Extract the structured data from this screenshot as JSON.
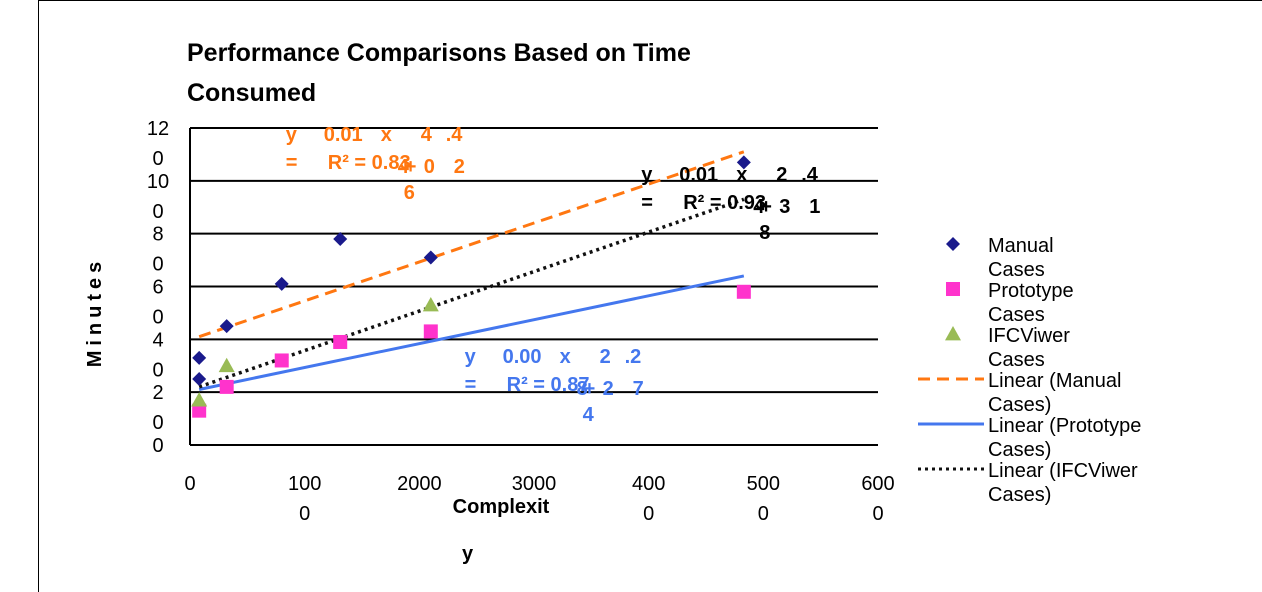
{
  "chart_data": {
    "type": "scatter",
    "title_lines": [
      "Performance Comparisons Based on Time",
      "Consumed"
    ],
    "xlabel_lines": [
      "Complexit",
      "y"
    ],
    "ylabel": "Minutes",
    "xlim": [
      0,
      6000
    ],
    "ylim": [
      0,
      120
    ],
    "x_ticks": [
      {
        "value": 0,
        "lines": [
          "0"
        ]
      },
      {
        "value": 1000,
        "lines": [
          "100",
          "0"
        ]
      },
      {
        "value": 2000,
        "lines": [
          "2000"
        ]
      },
      {
        "value": 3000,
        "lines": [
          "3000"
        ]
      },
      {
        "value": 4000,
        "lines": [
          "400",
          "0"
        ]
      },
      {
        "value": 5000,
        "lines": [
          "500",
          "0"
        ]
      },
      {
        "value": 6000,
        "lines": [
          "600",
          "0"
        ]
      }
    ],
    "y_ticks": [
      {
        "value": 0,
        "lines": [
          "0"
        ]
      },
      {
        "value": 20,
        "lines": [
          "2",
          "0"
        ]
      },
      {
        "value": 40,
        "lines": [
          "4",
          "0"
        ]
      },
      {
        "value": 60,
        "lines": [
          "6",
          "0"
        ]
      },
      {
        "value": 80,
        "lines": [
          "8",
          "0"
        ]
      },
      {
        "value": 100,
        "lines": [
          "10",
          "0"
        ]
      },
      {
        "value": 120,
        "lines": [
          "12",
          "0"
        ]
      }
    ],
    "grid": true,
    "legend_position": "right",
    "series": [
      {
        "name": "Manual Cases",
        "marker": "diamond",
        "color": "#1a1a8c",
        "points": [
          [
            80,
            33
          ],
          [
            80,
            25
          ],
          [
            320,
            45
          ],
          [
            800,
            61
          ],
          [
            1310,
            78
          ],
          [
            2100,
            71
          ],
          [
            4830,
            107
          ]
        ]
      },
      {
        "name": "Prototype Cases",
        "marker": "square",
        "color": "#ff33cc",
        "points": [
          [
            80,
            13
          ],
          [
            320,
            22
          ],
          [
            800,
            32
          ],
          [
            1310,
            39
          ],
          [
            2100,
            43
          ],
          [
            4830,
            58
          ]
        ]
      },
      {
        "name": "IFCViwer Cases",
        "marker": "triangle",
        "color": "#99bb55",
        "points": [
          [
            80,
            17
          ],
          [
            320,
            30
          ],
          [
            2100,
            53
          ]
        ]
      }
    ],
    "trendlines": [
      {
        "name": "Linear (Manual Cases)",
        "color": "#ff7711",
        "dash": "12,7",
        "width": 3,
        "x": [
          80,
          4830
        ],
        "y": [
          41,
          111
        ]
      },
      {
        "name": "Linear (Prototype Cases)",
        "color": "#4477ee",
        "dash": "",
        "width": 3,
        "x": [
          80,
          4830
        ],
        "y": [
          21,
          64
        ]
      },
      {
        "name": "Linear (IFCViwer Cases)",
        "color": "#111111",
        "dash": "3,4",
        "width": 3.5,
        "x": [
          80,
          4830
        ],
        "y": [
          22,
          93
        ]
      }
    ],
    "legend": [
      {
        "label_lines": [
          "Manual",
          "Cases"
        ],
        "marker": "diamond",
        "color": "#1a1a8c"
      },
      {
        "label_lines": [
          "Prototype",
          "Cases"
        ],
        "marker": "square",
        "color": "#ff33cc"
      },
      {
        "label_lines": [
          "IFCViwer",
          "Cases"
        ],
        "marker": "triangle",
        "color": "#99bb55"
      },
      {
        "label_lines": [
          "Linear (Manual",
          "Cases)"
        ],
        "line_color": "#ff7711",
        "dash": "12,7"
      },
      {
        "label_lines": [
          "Linear (Prototype",
          "Cases)"
        ],
        "line_color": "#4477ee",
        "dash": ""
      },
      {
        "label_lines": [
          "Linear (IFCViwer",
          "Cases)"
        ],
        "line_color": "#111111",
        "dash": "3,4"
      }
    ],
    "equations": [
      {
        "color": "#ff7711",
        "top": [
          "y",
          "0.01",
          "x",
          "4",
          ".4"
        ],
        "mid": [
          "=",
          "R² = 0.83",
          "4",
          "+",
          "0",
          "2"
        ],
        "bot": [
          "6"
        ],
        "anchor_x": 1620,
        "anchor_y": 115
      },
      {
        "color": "#000000",
        "top": [
          "y",
          "0.01",
          "x",
          "2",
          ".4"
        ],
        "mid": [
          "=",
          "R² = 0.93",
          "4",
          "+",
          "3",
          "1"
        ],
        "bot": [
          "8"
        ],
        "anchor_x": 4720,
        "anchor_y": 100
      },
      {
        "color": "#4477ee",
        "top": [
          "y",
          "0.00",
          "x",
          "2",
          ".2"
        ],
        "mid": [
          "=",
          "R² = 0.87",
          "8",
          "+",
          "2",
          "7"
        ],
        "bot": [
          "4"
        ],
        "anchor_x": 3180,
        "anchor_y": 31
      }
    ]
  }
}
